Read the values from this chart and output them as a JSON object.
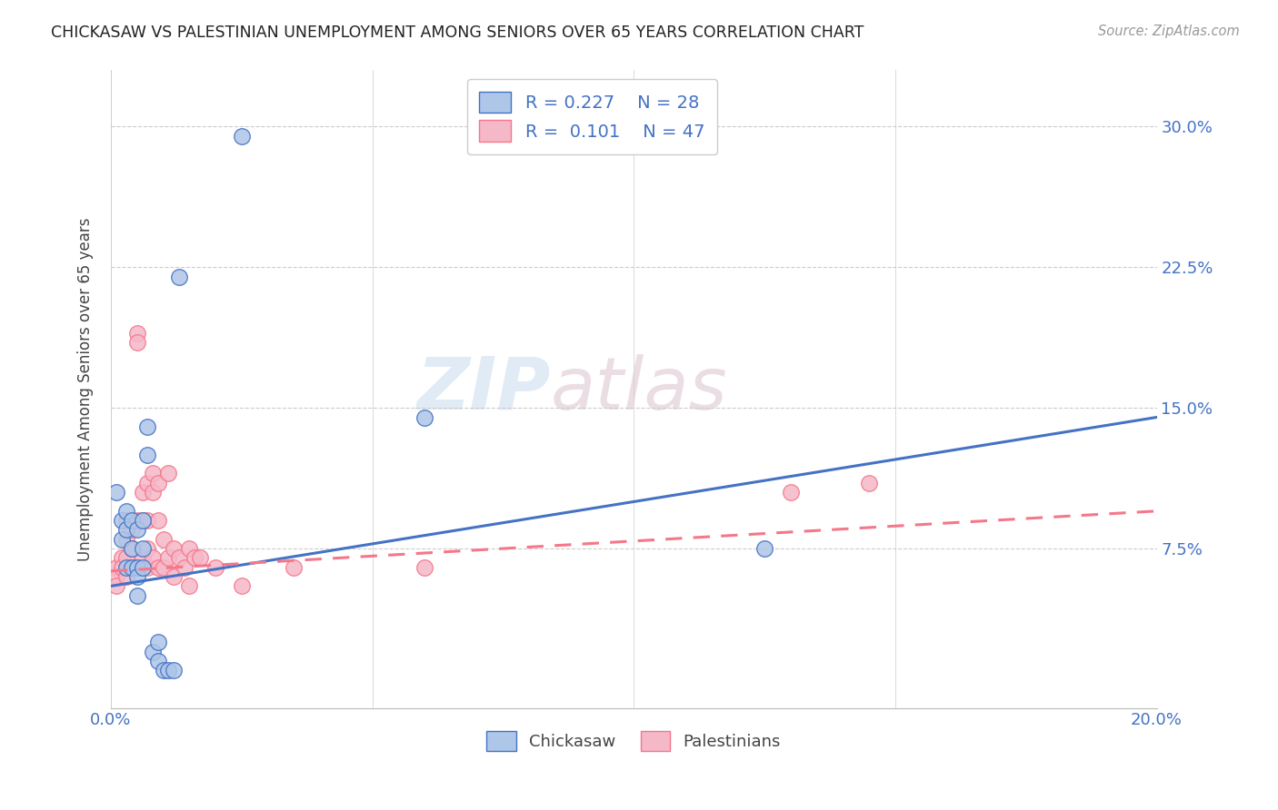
{
  "title": "CHICKASAW VS PALESTINIAN UNEMPLOYMENT AMONG SENIORS OVER 65 YEARS CORRELATION CHART",
  "source": "Source: ZipAtlas.com",
  "ylabel": "Unemployment Among Seniors over 65 years",
  "ylabel_ticks": [
    "7.5%",
    "15.0%",
    "22.5%",
    "30.0%"
  ],
  "ytick_vals": [
    0.075,
    0.15,
    0.225,
    0.3
  ],
  "xlim": [
    0.0,
    0.2
  ],
  "ylim": [
    -0.01,
    0.33
  ],
  "chickasaw_R": 0.227,
  "chickasaw_N": 28,
  "palestinian_R": 0.101,
  "palestinian_N": 47,
  "chickasaw_color": "#aec6e8",
  "palestinian_color": "#f5b8c8",
  "chickasaw_line_color": "#4472c4",
  "palestinian_line_color": "#f4778a",
  "background_color": "#ffffff",
  "watermark_zip": "ZIP",
  "watermark_atlas": "atlas",
  "chickasaw_x": [
    0.001,
    0.002,
    0.002,
    0.003,
    0.003,
    0.003,
    0.004,
    0.004,
    0.004,
    0.005,
    0.005,
    0.005,
    0.005,
    0.006,
    0.006,
    0.006,
    0.007,
    0.007,
    0.008,
    0.009,
    0.009,
    0.01,
    0.011,
    0.012,
    0.013,
    0.025,
    0.06,
    0.125
  ],
  "chickasaw_y": [
    0.105,
    0.09,
    0.08,
    0.095,
    0.085,
    0.065,
    0.09,
    0.075,
    0.065,
    0.085,
    0.065,
    0.06,
    0.05,
    0.09,
    0.075,
    0.065,
    0.14,
    0.125,
    0.02,
    0.025,
    0.015,
    0.01,
    0.01,
    0.01,
    0.22,
    0.295,
    0.145,
    0.075
  ],
  "palestinian_x": [
    0.001,
    0.001,
    0.001,
    0.002,
    0.002,
    0.003,
    0.003,
    0.003,
    0.003,
    0.004,
    0.004,
    0.004,
    0.005,
    0.005,
    0.005,
    0.005,
    0.006,
    0.006,
    0.006,
    0.007,
    0.007,
    0.007,
    0.007,
    0.008,
    0.008,
    0.008,
    0.009,
    0.009,
    0.009,
    0.01,
    0.01,
    0.011,
    0.011,
    0.012,
    0.012,
    0.013,
    0.014,
    0.015,
    0.015,
    0.016,
    0.017,
    0.02,
    0.025,
    0.035,
    0.06,
    0.13,
    0.145
  ],
  "palestinian_y": [
    0.065,
    0.06,
    0.055,
    0.07,
    0.065,
    0.09,
    0.08,
    0.07,
    0.06,
    0.085,
    0.075,
    0.065,
    0.19,
    0.185,
    0.09,
    0.065,
    0.105,
    0.09,
    0.07,
    0.11,
    0.09,
    0.075,
    0.065,
    0.115,
    0.105,
    0.07,
    0.11,
    0.09,
    0.065,
    0.08,
    0.065,
    0.115,
    0.07,
    0.075,
    0.06,
    0.07,
    0.065,
    0.075,
    0.055,
    0.07,
    0.07,
    0.065,
    0.055,
    0.065,
    0.065,
    0.105,
    0.11
  ],
  "chick_line_x0": 0.0,
  "chick_line_x1": 0.2,
  "chick_line_y0": 0.055,
  "chick_line_y1": 0.145,
  "pal_line_x0": 0.0,
  "pal_line_x1": 0.2,
  "pal_line_y0": 0.063,
  "pal_line_y1": 0.095
}
